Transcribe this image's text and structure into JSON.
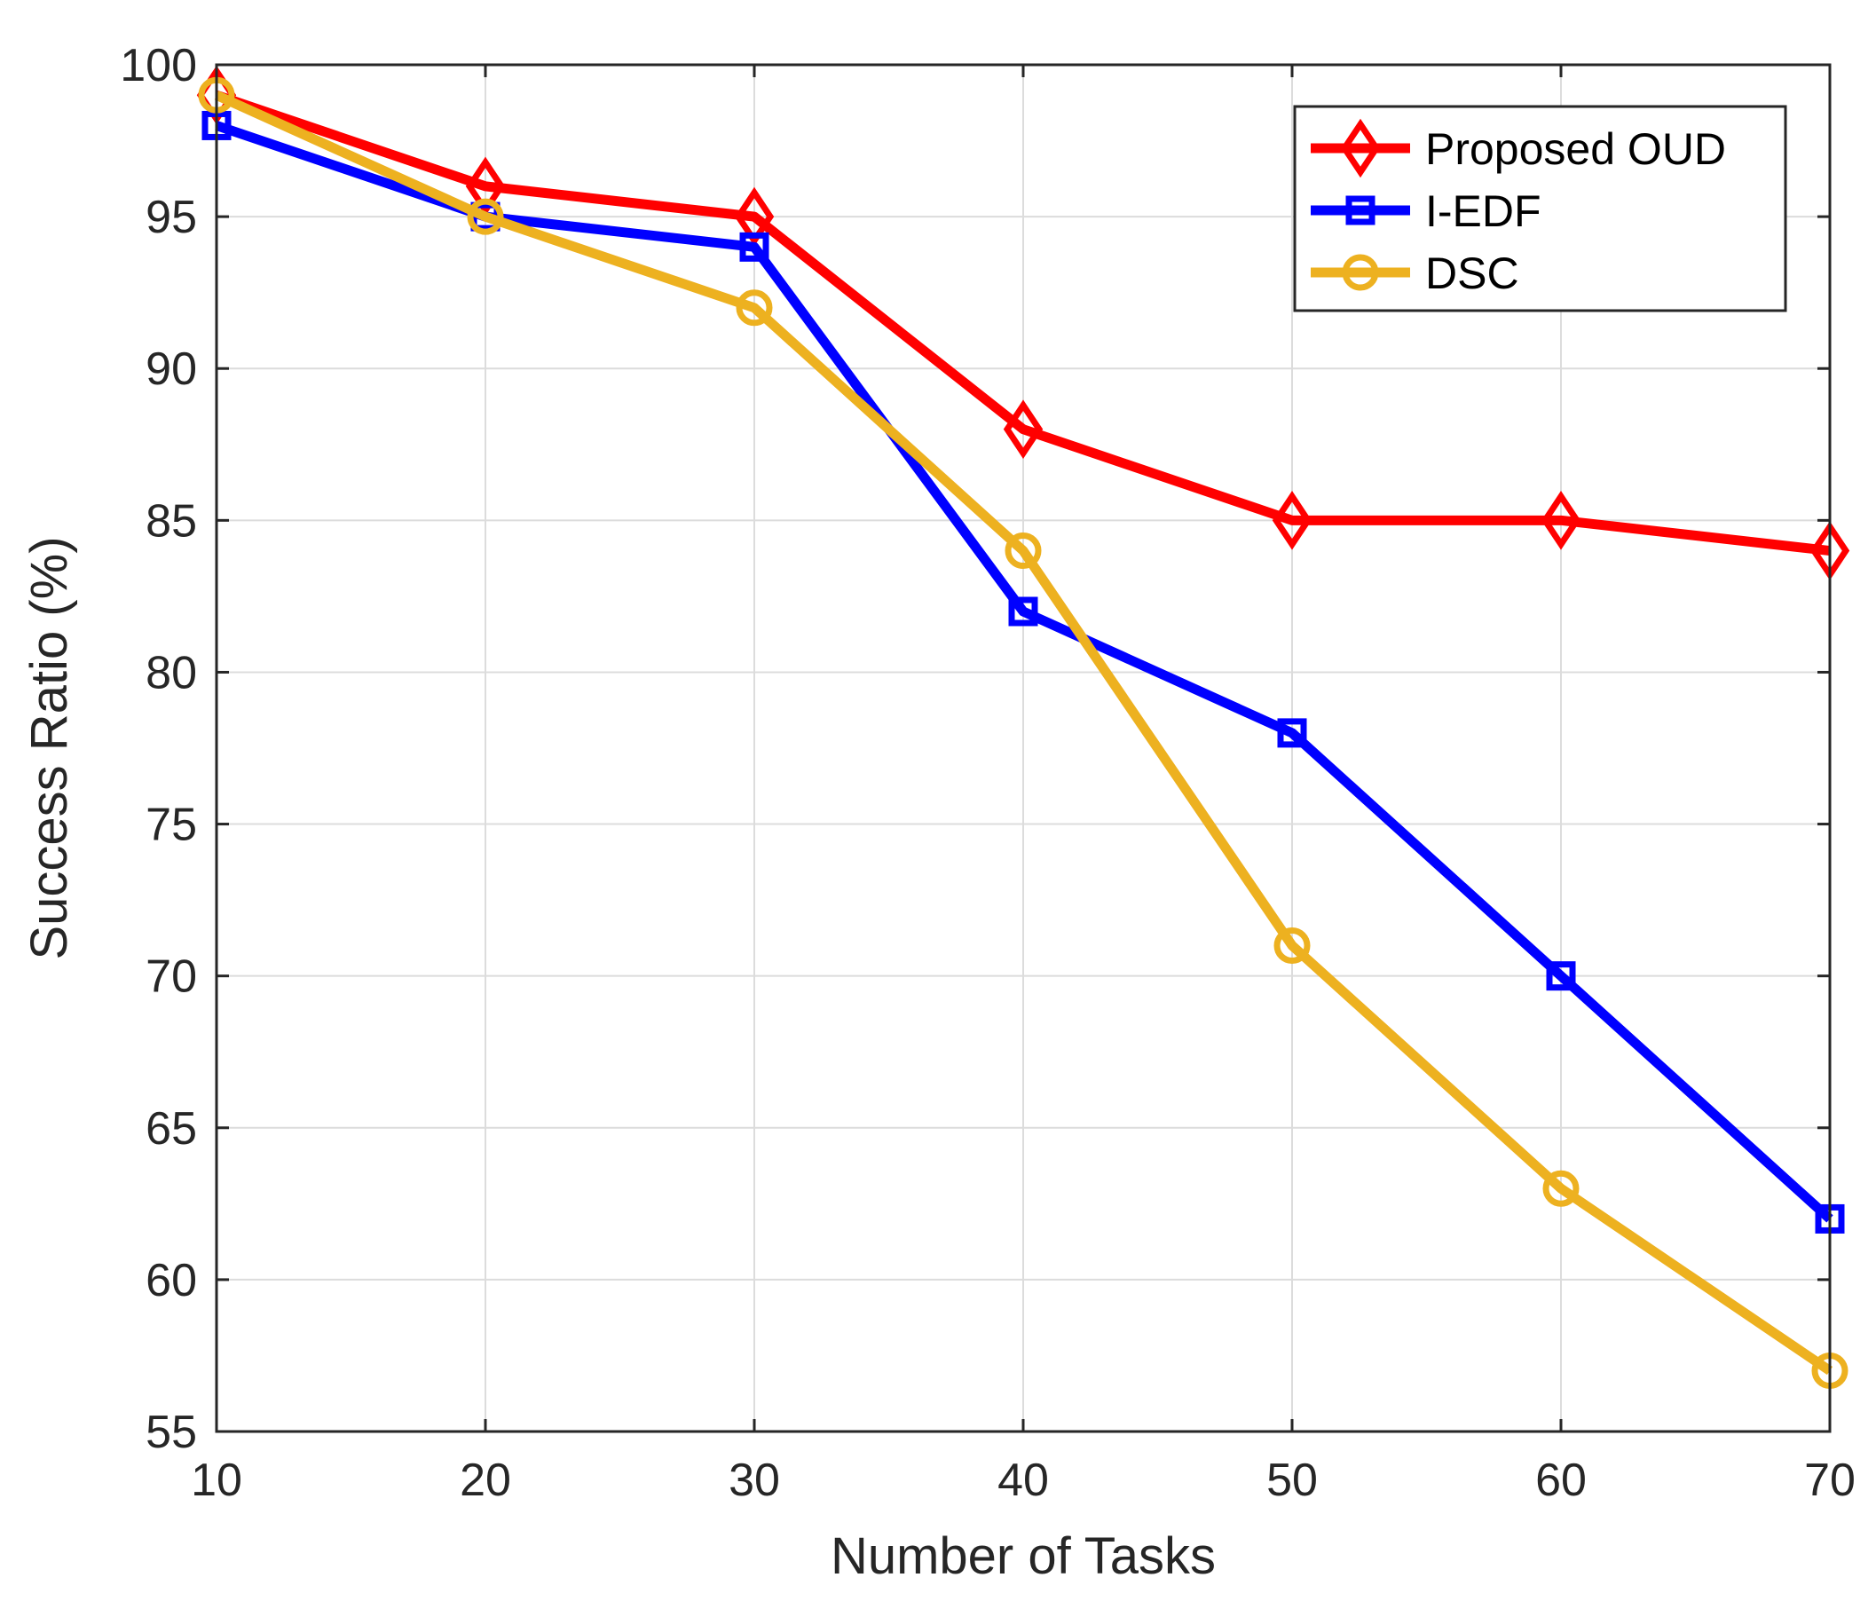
{
  "chart_data": {
    "type": "line",
    "title": "",
    "xlabel": "Number of Tasks",
    "ylabel": "Success Ratio (%)",
    "x": [
      10,
      20,
      30,
      40,
      50,
      60,
      70
    ],
    "xlim": [
      10,
      70
    ],
    "ylim": [
      55,
      100
    ],
    "xticks": [
      "10",
      "20",
      "30",
      "40",
      "50",
      "60",
      "70"
    ],
    "yticks": [
      "55",
      "60",
      "65",
      "70",
      "75",
      "80",
      "85",
      "90",
      "95",
      "100"
    ],
    "grid": true,
    "legend_position": "top-right",
    "series": [
      {
        "name": "Proposed OUD",
        "color": "#ff0000",
        "marker": "diamond",
        "values": [
          99,
          96,
          95,
          88,
          85,
          85,
          84
        ]
      },
      {
        "name": "I-EDF",
        "color": "#0000ff",
        "marker": "square",
        "values": [
          98,
          95,
          94,
          82,
          78,
          70,
          62
        ]
      },
      {
        "name": "DSC",
        "color": "#edb120",
        "marker": "circle",
        "values": [
          99,
          95,
          92,
          84,
          71,
          63,
          57
        ]
      }
    ]
  }
}
